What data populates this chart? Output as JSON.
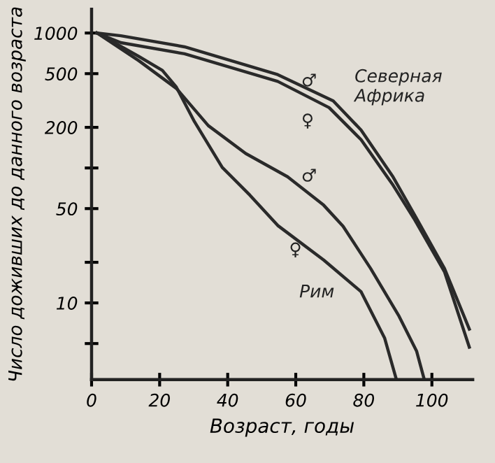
{
  "chart_data": {
    "type": "line",
    "xlabel": "Возраст, годы",
    "ylabel": "Число доживших до данного возраста",
    "log": "y",
    "xlim": [
      0,
      112
    ],
    "ylim": [
      2.7,
      1500
    ],
    "xticks": [
      0,
      20,
      40,
      60,
      80,
      100
    ],
    "yticks": [
      1000,
      500,
      200,
      {
        "value": 100,
        "label": null
      },
      50,
      {
        "value": 20,
        "label": null
      },
      10,
      {
        "value": 5,
        "label": null
      }
    ],
    "grid": false,
    "marker": "none",
    "line_style": "solid",
    "series": [
      {
        "color": "#2a2a2a",
        "x": [
          1.6,
          8.6,
          27.3,
          54.7,
          71,
          79.2,
          88.6,
          95.5,
          103.7,
          111
        ],
        "values": [
          1000,
          954,
          790,
          492,
          314,
          191,
          85.7,
          42.3,
          18,
          6.4
        ]
      },
      {
        "color": "#2a2a2a",
        "x": [
          1.6,
          8.6,
          27.3,
          54.7,
          69.8,
          79.2,
          88.6,
          94.7,
          103.7,
          111
        ],
        "values": [
          1000,
          848,
          702,
          438,
          280,
          162,
          74.5,
          42.3,
          17,
          4.7
        ]
      },
      {
        "color": "#2a2a2a",
        "x": [
          1.6,
          13.9,
          24.9,
          34.3,
          45.3,
          57.6,
          68.2,
          73.9,
          82,
          90.2,
          95.5,
          97.6
        ],
        "values": [
          1000,
          623,
          389,
          206,
          128,
          86,
          53,
          37,
          18,
          8.1,
          4.4,
          2.8
        ]
      },
      {
        "color": "#2a2a2a",
        "x": [
          1.6,
          13.9,
          20.8,
          24.9,
          30.2,
          38.4,
          46.5,
          54.7,
          68.2,
          79.2,
          86.1,
          89.4
        ],
        "values": [
          1000,
          670,
          529,
          398,
          221,
          101,
          63,
          37.5,
          20.8,
          12.1,
          5.5,
          2.8
        ]
      }
    ],
    "annotations": [
      "♂",
      "Северная\nАфрика",
      "♀",
      "♂",
      "♀",
      "Рим"
    ]
  }
}
